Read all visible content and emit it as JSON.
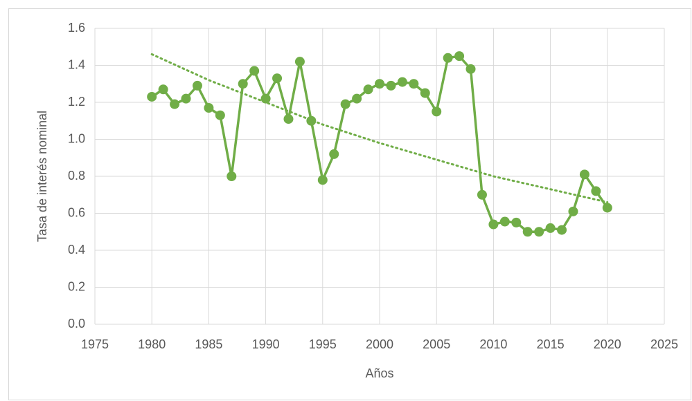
{
  "chart_data": {
    "type": "line",
    "x_label": "Años",
    "y_label": "Tasa de interés nominal",
    "x": [
      1980,
      1981,
      1982,
      1983,
      1984,
      1985,
      1986,
      1987,
      1988,
      1989,
      1990,
      1991,
      1992,
      1993,
      1994,
      1995,
      1996,
      1997,
      1998,
      1999,
      2000,
      2001,
      2002,
      2003,
      2004,
      2005,
      2006,
      2007,
      2008,
      2009,
      2010,
      2011,
      2012,
      2013,
      2014,
      2015,
      2016,
      2017,
      2018,
      2019,
      2020
    ],
    "series": [
      {
        "color": "#70ad47",
        "values": [
          1.23,
          1.27,
          1.19,
          1.22,
          1.29,
          1.17,
          1.13,
          0.8,
          1.3,
          1.37,
          1.22,
          1.33,
          1.11,
          1.42,
          1.1,
          0.78,
          0.92,
          1.19,
          1.22,
          1.27,
          1.3,
          1.29,
          1.31,
          1.3,
          1.25,
          1.15,
          1.44,
          1.45,
          1.38,
          0.7,
          0.54,
          0.555,
          0.55,
          0.5,
          0.5,
          0.52,
          0.51,
          0.61,
          0.81,
          0.72,
          0.63
        ]
      }
    ],
    "trendline": {
      "color": "#70ad47",
      "x": [
        1980,
        1985,
        1990,
        1995,
        2000,
        2005,
        2010,
        2015,
        2020
      ],
      "values": [
        1.46,
        1.32,
        1.2,
        1.08,
        0.98,
        0.89,
        0.8,
        0.73,
        0.66
      ]
    },
    "xlim": [
      1975,
      2025
    ],
    "xticks": [
      1975,
      1980,
      1985,
      1990,
      1995,
      2000,
      2005,
      2010,
      2015,
      2020,
      2025
    ],
    "ylim": [
      0,
      1.6
    ],
    "yticks": [
      {
        "value": 0,
        "label": "0.0"
      },
      0.2,
      0.4,
      0.6,
      0.8,
      {
        "value": 1,
        "label": "1.0"
      },
      1.2,
      1.4,
      1.6
    ],
    "grid": true
  }
}
